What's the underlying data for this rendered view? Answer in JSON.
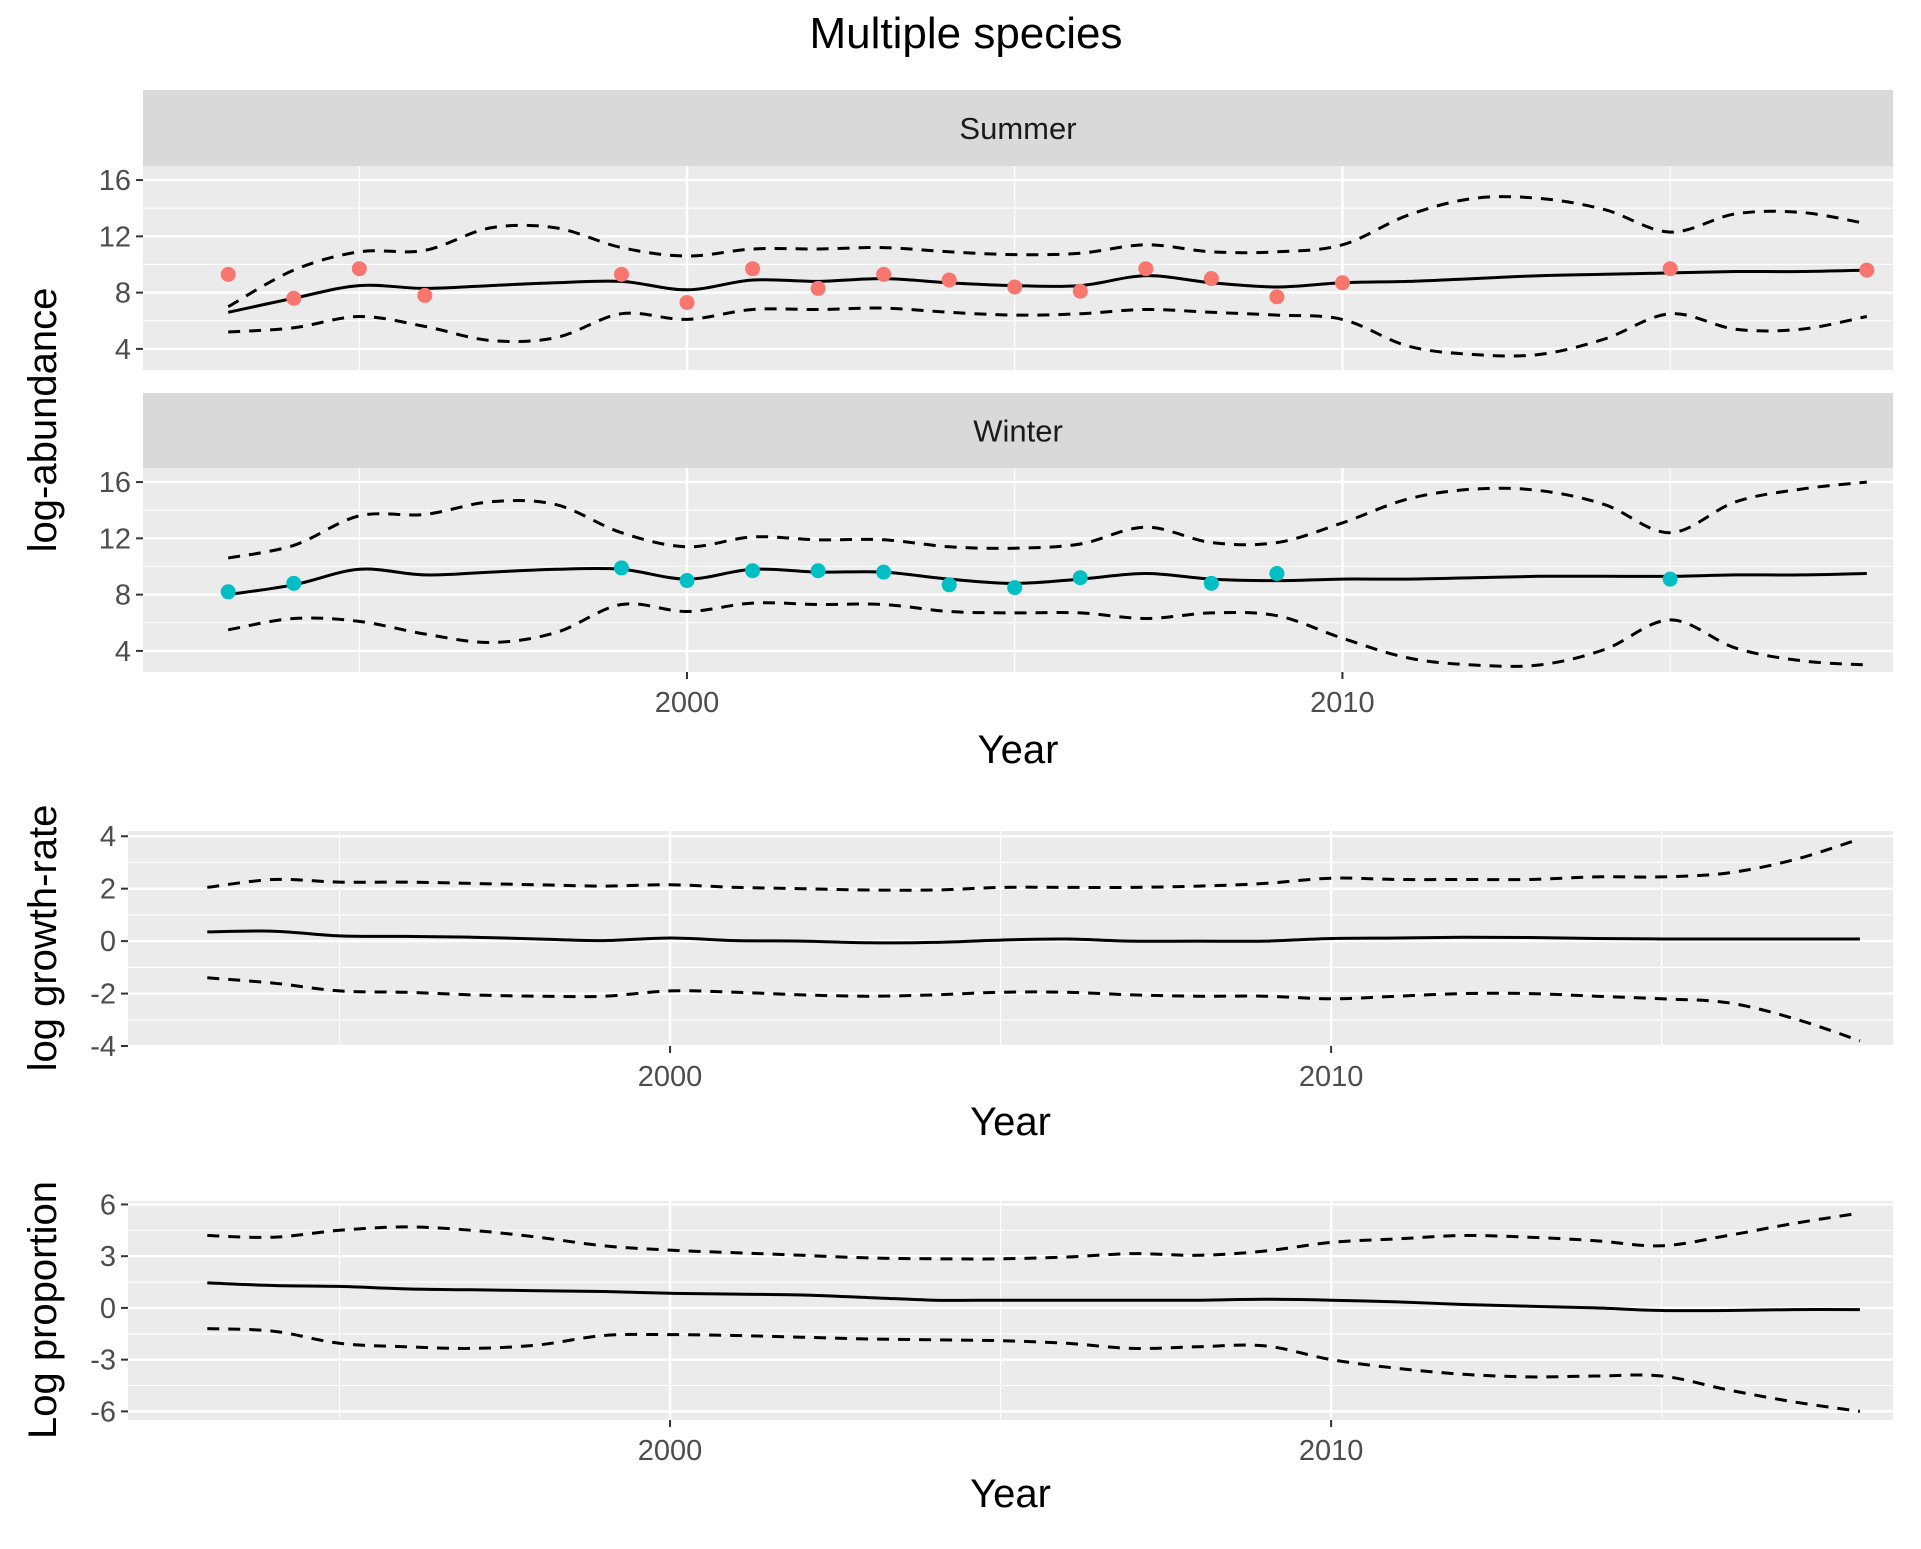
{
  "chart_data": {
    "title": "Multiple species",
    "type": "line",
    "x_ticks": [
      2000,
      2010
    ],
    "colors": {
      "summer": "#F8766D",
      "winter": "#00BFC4",
      "line": "#000000",
      "panel": "#EBEBEB",
      "strip": "#D9D9D9"
    },
    "panels": [
      {
        "id": "summer",
        "strip": "Summer",
        "ylabel": "log-abundance",
        "xlabel": "",
        "ylim": [
          2.5,
          17
        ],
        "xlim": [
          1991.7,
          2018.4
        ],
        "yticks": [
          "4",
          "8",
          "12",
          "16"
        ],
        "ytick_values": [
          4,
          8,
          12,
          16
        ],
        "point_color": "#F8766D",
        "x": [
          1993,
          1994,
          1995,
          1996,
          1997,
          1998,
          1999,
          2000,
          2001,
          2002,
          2003,
          2004,
          2005,
          2006,
          2007,
          2008,
          2009,
          2010,
          2011,
          2012,
          2013,
          2014,
          2015,
          2016,
          2017,
          2018
        ],
        "mean": [
          6.6,
          7.6,
          8.5,
          8.3,
          8.5,
          8.7,
          8.8,
          8.2,
          8.9,
          8.8,
          9.0,
          8.7,
          8.5,
          8.5,
          9.2,
          8.7,
          8.4,
          8.7,
          8.8,
          9.0,
          9.2,
          9.3,
          9.4,
          9.5,
          9.5,
          9.6
        ],
        "upper": [
          7.0,
          9.6,
          10.9,
          11.0,
          12.6,
          12.6,
          11.2,
          10.6,
          11.1,
          11.1,
          11.2,
          10.9,
          10.7,
          10.8,
          11.4,
          10.9,
          10.9,
          11.4,
          13.5,
          14.7,
          14.7,
          13.9,
          12.3,
          13.6,
          13.7,
          12.9
        ],
        "lower": [
          5.2,
          5.5,
          6.3,
          5.6,
          4.6,
          4.8,
          6.5,
          6.1,
          6.8,
          6.8,
          6.9,
          6.6,
          6.4,
          6.5,
          6.8,
          6.6,
          6.4,
          6.1,
          4.2,
          3.6,
          3.6,
          4.7,
          6.5,
          5.4,
          5.4,
          6.3
        ],
        "points_x": [
          1993,
          1994,
          1995,
          1996,
          1999,
          2000,
          2001,
          2002,
          2003,
          2004,
          2005,
          2006,
          2007,
          2008,
          2009,
          2010,
          2015,
          2018
        ],
        "points_y": [
          9.3,
          7.6,
          9.7,
          7.8,
          9.3,
          7.3,
          9.7,
          8.3,
          9.3,
          8.9,
          8.4,
          8.1,
          9.7,
          9.0,
          7.7,
          8.7,
          9.7,
          9.6
        ]
      },
      {
        "id": "winter",
        "strip": "Winter",
        "ylabel": "",
        "xlabel": "Year",
        "ylim": [
          2.5,
          17
        ],
        "xlim": [
          1991.7,
          2018.4
        ],
        "yticks": [
          "4",
          "8",
          "12",
          "16"
        ],
        "ytick_values": [
          4,
          8,
          12,
          16
        ],
        "xtick_labels": [
          "2000",
          "2010"
        ],
        "point_color": "#00BFC4",
        "x": [
          1993,
          1994,
          1995,
          1996,
          1997,
          1998,
          1999,
          2000,
          2001,
          2002,
          2003,
          2004,
          2005,
          2006,
          2007,
          2008,
          2009,
          2010,
          2011,
          2012,
          2013,
          2014,
          2015,
          2016,
          2017,
          2018
        ],
        "mean": [
          8.0,
          8.7,
          9.8,
          9.4,
          9.6,
          9.8,
          9.8,
          9.1,
          9.8,
          9.6,
          9.6,
          9.1,
          8.8,
          9.1,
          9.5,
          9.1,
          9.0,
          9.1,
          9.1,
          9.2,
          9.3,
          9.3,
          9.3,
          9.4,
          9.4,
          9.5
        ],
        "upper": [
          10.6,
          11.5,
          13.6,
          13.7,
          14.6,
          14.4,
          12.4,
          11.4,
          12.1,
          11.9,
          11.9,
          11.4,
          11.3,
          11.6,
          12.8,
          11.7,
          11.7,
          13.1,
          14.8,
          15.5,
          15.4,
          14.4,
          12.4,
          14.6,
          15.5,
          16.0
        ],
        "lower": [
          5.5,
          6.3,
          6.1,
          5.2,
          4.6,
          5.3,
          7.3,
          6.8,
          7.4,
          7.3,
          7.3,
          6.8,
          6.7,
          6.7,
          6.3,
          6.7,
          6.5,
          4.9,
          3.5,
          3.0,
          3.0,
          4.1,
          6.2,
          4.2,
          3.3,
          3.0
        ],
        "points_x": [
          1993,
          1994,
          1999,
          2000,
          2001,
          2002,
          2003,
          2004,
          2005,
          2006,
          2008,
          2009,
          2015
        ],
        "points_y": [
          8.2,
          8.8,
          9.9,
          9.0,
          9.7,
          9.7,
          9.6,
          8.7,
          8.5,
          9.2,
          8.8,
          9.5,
          9.1
        ]
      },
      {
        "id": "growth",
        "strip": "",
        "ylabel": "log growth-rate",
        "xlabel": "Year",
        "ylim": [
          -4,
          4.2
        ],
        "xlim": [
          1991.8,
          2018.5
        ],
        "yticks": [
          "4",
          "2",
          "0",
          "-2",
          "-4"
        ],
        "ytick_values": [
          4,
          2,
          0,
          -2,
          -4
        ],
        "xtick_labels": [
          "2000",
          "2010"
        ],
        "x": [
          1993,
          1994,
          1995,
          1996,
          1997,
          1998,
          1999,
          2000,
          2001,
          2002,
          2003,
          2004,
          2005,
          2006,
          2007,
          2008,
          2009,
          2010,
          2011,
          2012,
          2013,
          2014,
          2015,
          2016,
          2017,
          2018
        ],
        "mean": [
          0.35,
          0.38,
          0.2,
          0.18,
          0.15,
          0.08,
          0.02,
          0.12,
          0.02,
          0.0,
          -0.06,
          -0.05,
          0.04,
          0.08,
          0.0,
          0.0,
          0.0,
          0.1,
          0.12,
          0.15,
          0.14,
          0.1,
          0.08,
          0.08,
          0.08,
          0.08
        ],
        "upper": [
          2.05,
          2.35,
          2.25,
          2.25,
          2.2,
          2.15,
          2.1,
          2.15,
          2.05,
          2.0,
          1.95,
          1.95,
          2.05,
          2.05,
          2.05,
          2.1,
          2.2,
          2.4,
          2.35,
          2.35,
          2.35,
          2.45,
          2.45,
          2.6,
          3.1,
          3.9
        ],
        "lower": [
          -1.4,
          -1.6,
          -1.9,
          -1.95,
          -2.05,
          -2.1,
          -2.1,
          -1.9,
          -1.95,
          -2.05,
          -2.1,
          -2.05,
          -1.95,
          -1.95,
          -2.05,
          -2.1,
          -2.1,
          -2.2,
          -2.1,
          -2.0,
          -2.0,
          -2.1,
          -2.2,
          -2.35,
          -2.95,
          -3.8
        ]
      },
      {
        "id": "proportion",
        "strip": "",
        "ylabel": "Log proportion",
        "xlabel": "Year",
        "ylim": [
          -6.5,
          6.2
        ],
        "xlim": [
          1991.8,
          2018.5
        ],
        "yticks": [
          "6",
          "3",
          "0",
          "-3",
          "-6"
        ],
        "ytick_values": [
          6,
          3,
          0,
          -3,
          -6
        ],
        "xtick_labels": [
          "2000",
          "2010"
        ],
        "x": [
          1993,
          1994,
          1995,
          1996,
          1997,
          1998,
          1999,
          2000,
          2001,
          2002,
          2003,
          2004,
          2005,
          2006,
          2007,
          2008,
          2009,
          2010,
          2011,
          2012,
          2013,
          2014,
          2015,
          2016,
          2017,
          2018
        ],
        "mean": [
          1.45,
          1.3,
          1.25,
          1.1,
          1.05,
          1.0,
          0.95,
          0.85,
          0.8,
          0.75,
          0.6,
          0.45,
          0.45,
          0.45,
          0.45,
          0.45,
          0.5,
          0.45,
          0.35,
          0.2,
          0.1,
          0.0,
          -0.15,
          -0.15,
          -0.1,
          -0.1
        ],
        "upper": [
          4.2,
          4.1,
          4.5,
          4.7,
          4.5,
          4.1,
          3.6,
          3.35,
          3.2,
          3.05,
          2.9,
          2.85,
          2.85,
          2.95,
          3.15,
          3.05,
          3.3,
          3.8,
          4.0,
          4.2,
          4.1,
          3.9,
          3.6,
          4.2,
          4.9,
          5.5
        ],
        "lower": [
          -1.2,
          -1.35,
          -2.05,
          -2.25,
          -2.35,
          -2.15,
          -1.6,
          -1.55,
          -1.6,
          -1.7,
          -1.8,
          -1.85,
          -1.9,
          -2.05,
          -2.35,
          -2.25,
          -2.2,
          -3.0,
          -3.5,
          -3.85,
          -4.0,
          -3.95,
          -3.95,
          -4.75,
          -5.45,
          -6.0
        ]
      }
    ]
  }
}
